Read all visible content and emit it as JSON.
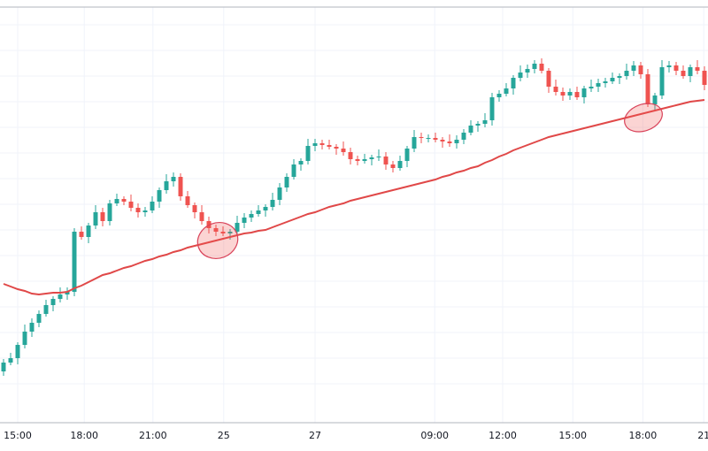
{
  "chart_data": {
    "type": "candlestick",
    "open": [
      55,
      65,
      70,
      85,
      100,
      110,
      120,
      130,
      137,
      142,
      145,
      213,
      207,
      220,
      235,
      225,
      245,
      250,
      247,
      240,
      235,
      237,
      247,
      260,
      270,
      275,
      253,
      243,
      235,
      225,
      217,
      213,
      211,
      213,
      223,
      229,
      233,
      237,
      241,
      249,
      263,
      275,
      289,
      293,
      310,
      313,
      311,
      309,
      307,
      303,
      295,
      293,
      295,
      297,
      298,
      289,
      285,
      293,
      307,
      320,
      319,
      319,
      317,
      315,
      313,
      317,
      325,
      333,
      335,
      339,
      365,
      369,
      375,
      387,
      393,
      397,
      403,
      395,
      377,
      371,
      367,
      371,
      365,
      375,
      377,
      381,
      383,
      387,
      389,
      395,
      401,
      391,
      357,
      367,
      399,
      401,
      395,
      389,
      399,
      395
    ],
    "high": [
      69,
      76,
      88,
      108,
      115,
      124,
      136,
      140,
      150,
      150,
      217,
      219,
      223,
      243,
      240,
      249,
      256,
      253,
      255,
      245,
      241,
      253,
      263,
      278,
      280,
      279,
      259,
      246,
      243,
      230,
      221,
      219,
      216,
      231,
      234,
      237,
      243,
      244,
      257,
      268,
      279,
      295,
      296,
      318,
      318,
      317,
      317,
      312,
      315,
      308,
      299,
      301,
      300,
      306,
      303,
      293,
      299,
      310,
      328,
      325,
      323,
      325,
      320,
      323,
      322,
      329,
      339,
      338,
      347,
      370,
      373,
      381,
      390,
      401,
      402,
      407,
      409,
      398,
      385,
      376,
      375,
      377,
      378,
      385,
      386,
      387,
      393,
      392,
      403,
      406,
      405,
      397,
      370,
      407,
      406,
      405,
      401,
      402,
      407,
      400
    ],
    "low": [
      50,
      62,
      63,
      81,
      94,
      105,
      117,
      123,
      133,
      136,
      140,
      204,
      200,
      216,
      219,
      220,
      242,
      243,
      236,
      229,
      230,
      234,
      240,
      256,
      264,
      248,
      240,
      228,
      221,
      211,
      208,
      208,
      204,
      209,
      217,
      224,
      230,
      230,
      237,
      243,
      258,
      272,
      282,
      289,
      304,
      306,
      306,
      300,
      299,
      289,
      288,
      290,
      288,
      293,
      283,
      280,
      282,
      286,
      303,
      313,
      314,
      314,
      308,
      309,
      307,
      312,
      322,
      326,
      331,
      333,
      360,
      366,
      368,
      383,
      387,
      392,
      392,
      370,
      367,
      361,
      362,
      362,
      358,
      371,
      371,
      376,
      380,
      380,
      385,
      389,
      386,
      354,
      350,
      363,
      393,
      390,
      386,
      382,
      391,
      373
    ],
    "close": [
      65,
      70,
      85,
      100,
      110,
      120,
      130,
      137,
      142,
      145,
      213,
      207,
      220,
      235,
      225,
      245,
      250,
      247,
      240,
      235,
      237,
      247,
      260,
      270,
      275,
      253,
      243,
      235,
      225,
      217,
      213,
      211,
      213,
      223,
      229,
      233,
      237,
      241,
      249,
      263,
      275,
      289,
      293,
      310,
      313,
      311,
      309,
      307,
      303,
      295,
      293,
      295,
      297,
      298,
      289,
      285,
      293,
      307,
      320,
      319,
      319,
      317,
      315,
      313,
      317,
      325,
      333,
      335,
      339,
      365,
      369,
      375,
      387,
      393,
      397,
      403,
      395,
      377,
      371,
      367,
      371,
      365,
      375,
      377,
      381,
      383,
      387,
      389,
      395,
      401,
      391,
      357,
      367,
      399,
      401,
      395,
      389,
      399,
      395,
      379
    ],
    "up_color": "#26a69a",
    "down_color": "#ef5350",
    "moving_average": {
      "color": "#e04848",
      "values": [
        154,
        151,
        148,
        146,
        143,
        142,
        143,
        144,
        144,
        145,
        149,
        152,
        156,
        160,
        164,
        166,
        169,
        172,
        174,
        177,
        180,
        182,
        185,
        187,
        190,
        192,
        195,
        197,
        199,
        201,
        203,
        205,
        207,
        209,
        211,
        212,
        214,
        215,
        218,
        221,
        224,
        227,
        230,
        233,
        235,
        238,
        241,
        243,
        245,
        248,
        250,
        252,
        254,
        256,
        258,
        260,
        262,
        264,
        266,
        268,
        270,
        272,
        275,
        277,
        280,
        282,
        285,
        287,
        291,
        294,
        298,
        301,
        305,
        308,
        311,
        314,
        317,
        320,
        322,
        324,
        326,
        328,
        330,
        332,
        334,
        336,
        338,
        340,
        342,
        344,
        346,
        348,
        350,
        352,
        354,
        356,
        358,
        360,
        361,
        362
      ]
    },
    "xlim": [
      -0.5,
      99.5
    ],
    "xticks": [
      {
        "value": 2,
        "label": "15:00"
      },
      {
        "value": 11.4,
        "label": "18:00"
      },
      {
        "value": 21.1,
        "label": "21:00"
      },
      {
        "value": 31.1,
        "label": "25"
      },
      {
        "value": 44,
        "label": "27"
      },
      {
        "value": 60.9,
        "label": "09:00"
      },
      {
        "value": 70.5,
        "label": "12:00"
      },
      {
        "value": 80.4,
        "label": "15:00"
      },
      {
        "value": 90.3,
        "label": "18:00"
      },
      {
        "value": 98.9,
        "label": "21"
      }
    ],
    "ylim": [
      0,
      467
    ],
    "ygrid": [
      41,
      70,
      99,
      128,
      157,
      186,
      215,
      244,
      273,
      302,
      331,
      360,
      389,
      418,
      447
    ],
    "grid": true
  }
}
